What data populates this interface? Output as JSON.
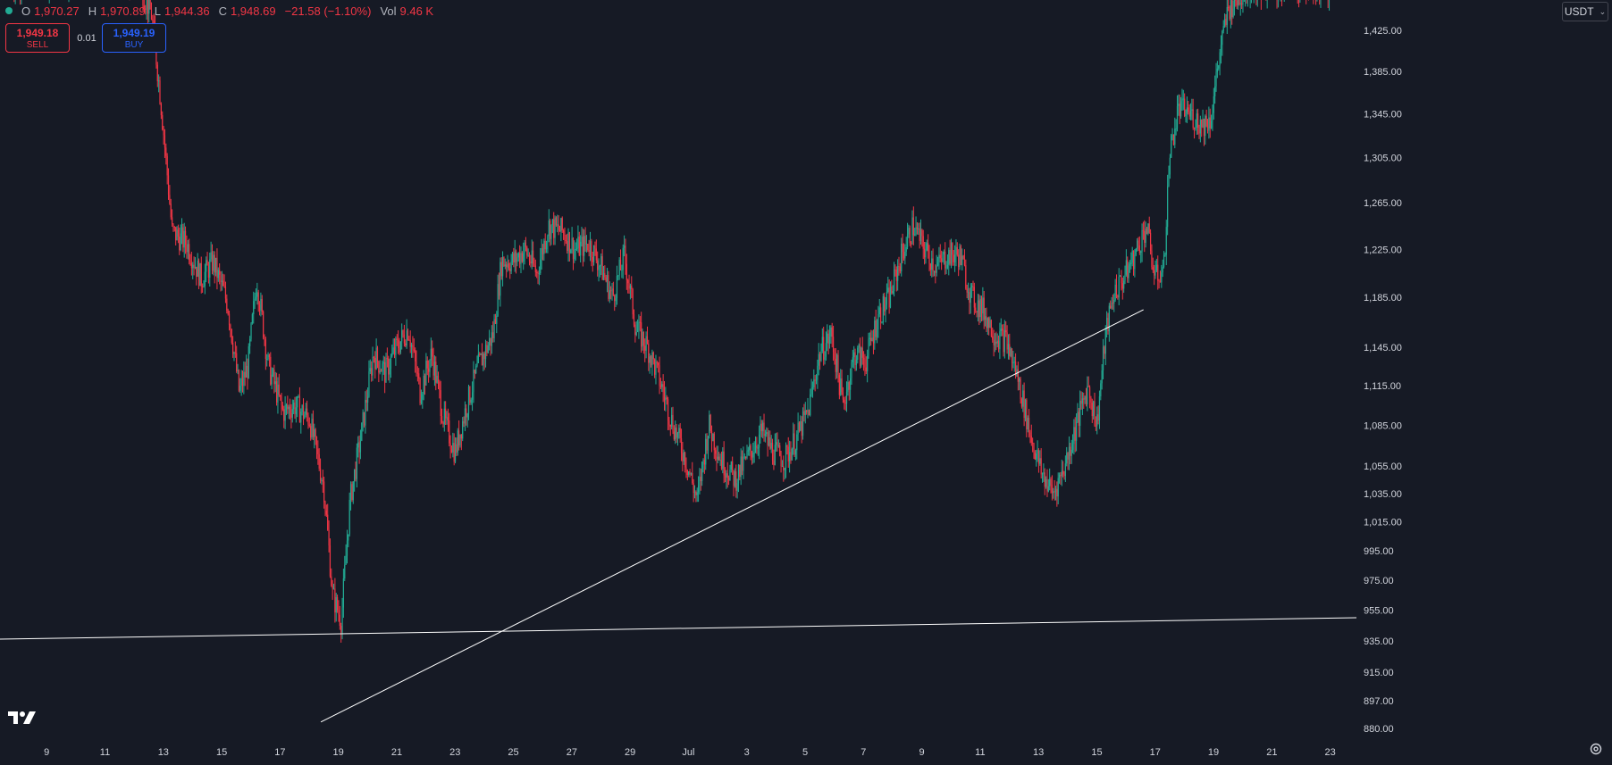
{
  "header": {
    "o_label": "O",
    "o_value": "1,970.27",
    "h_label": "H",
    "h_value": "1,970.89",
    "l_label": "L",
    "l_value": "1,944.36",
    "c_label": "C",
    "c_value": "1,948.69",
    "change": "−21.58 (−1.10%)",
    "vol_label": "Vol",
    "vol_value": "9.46 K"
  },
  "trade": {
    "sell_price": "1,949.18",
    "sell_label": "SELL",
    "spread": "0.01",
    "buy_price": "1,949.19",
    "buy_label": "BUY"
  },
  "currency": {
    "label": "USDT",
    "icon": "chevron-down-icon"
  },
  "icons": {
    "logo": "tradingview-logo",
    "settings": "settings-icon"
  },
  "colors": {
    "background": "#161a25",
    "up": "#22ab94",
    "down": "#f23645",
    "axis_text": "#d1d4dc",
    "trendline": "#ffffff"
  },
  "chart_data": {
    "type": "candlestick",
    "title": "",
    "xlabel": "",
    "ylabel": "",
    "ylim": [
      872,
      1455
    ],
    "y_scale": "log",
    "grid": false,
    "y_ticks": [
      "1,425.00",
      "1,385.00",
      "1,345.00",
      "1,305.00",
      "1,265.00",
      "1,225.00",
      "1,185.00",
      "1,145.00",
      "1,115.00",
      "1,085.00",
      "1,055.00",
      "1,035.00",
      "1,015.00",
      "995.00",
      "975.00",
      "955.00",
      "935.00",
      "915.00",
      "897.00",
      "880.00"
    ],
    "x_tick_labels": [
      "9",
      "11",
      "13",
      "15",
      "17",
      "19",
      "21",
      "23",
      "25",
      "27",
      "29",
      "Jul",
      "3",
      "5",
      "7",
      "9",
      "11",
      "13",
      "15",
      "17",
      "19",
      "21",
      "23"
    ],
    "x_tick_days": [
      9,
      11,
      13,
      15,
      17,
      19,
      21,
      23,
      25,
      27,
      29,
      31,
      33,
      35,
      37,
      39,
      41,
      43,
      45,
      47,
      49,
      51,
      53
    ],
    "x_range_days": [
      7.4,
      53.9
    ],
    "x_day_origin": "June 1",
    "candles_per_day": 24,
    "price_path": [
      [
        7.8,
        1470
      ],
      [
        8.6,
        1480
      ],
      [
        9.2,
        1475
      ],
      [
        10.0,
        1478
      ],
      [
        10.8,
        1482
      ],
      [
        11.5,
        1480
      ],
      [
        12.2,
        1470
      ],
      [
        12.6,
        1440
      ],
      [
        12.9,
        1360
      ],
      [
        13.3,
        1240
      ],
      [
        13.8,
        1230
      ],
      [
        14.3,
        1200
      ],
      [
        14.7,
        1215
      ],
      [
        15.2,
        1180
      ],
      [
        15.6,
        1110
      ],
      [
        15.9,
        1130
      ],
      [
        16.2,
        1200
      ],
      [
        16.6,
        1130
      ],
      [
        17.1,
        1095
      ],
      [
        17.5,
        1100
      ],
      [
        18.0,
        1090
      ],
      [
        18.5,
        1040
      ],
      [
        18.8,
        965
      ],
      [
        19.1,
        948
      ],
      [
        19.4,
        1030
      ],
      [
        19.8,
        1080
      ],
      [
        20.2,
        1140
      ],
      [
        20.6,
        1125
      ],
      [
        21.0,
        1145
      ],
      [
        21.4,
        1160
      ],
      [
        21.8,
        1110
      ],
      [
        22.2,
        1140
      ],
      [
        22.6,
        1090
      ],
      [
        23.0,
        1065
      ],
      [
        23.4,
        1100
      ],
      [
        23.8,
        1130
      ],
      [
        24.3,
        1155
      ],
      [
        24.6,
        1215
      ],
      [
        25.0,
        1215
      ],
      [
        25.4,
        1225
      ],
      [
        25.8,
        1205
      ],
      [
        26.2,
        1245
      ],
      [
        26.7,
        1240
      ],
      [
        27.1,
        1225
      ],
      [
        27.6,
        1230
      ],
      [
        28.0,
        1210
      ],
      [
        28.4,
        1185
      ],
      [
        28.8,
        1220
      ],
      [
        29.2,
        1160
      ],
      [
        29.6,
        1145
      ],
      [
        30.0,
        1120
      ],
      [
        30.4,
        1090
      ],
      [
        30.9,
        1060
      ],
      [
        31.3,
        1030
      ],
      [
        31.7,
        1085
      ],
      [
        32.1,
        1060
      ],
      [
        32.6,
        1045
      ],
      [
        33.0,
        1060
      ],
      [
        33.5,
        1080
      ],
      [
        33.9,
        1065
      ],
      [
        34.3,
        1060
      ],
      [
        34.7,
        1075
      ],
      [
        35.1,
        1095
      ],
      [
        35.5,
        1140
      ],
      [
        35.9,
        1155
      ],
      [
        36.3,
        1100
      ],
      [
        36.7,
        1140
      ],
      [
        37.1,
        1135
      ],
      [
        37.5,
        1170
      ],
      [
        37.9,
        1185
      ],
      [
        38.3,
        1220
      ],
      [
        38.7,
        1245
      ],
      [
        39.1,
        1225
      ],
      [
        39.5,
        1210
      ],
      [
        39.9,
        1220
      ],
      [
        40.3,
        1220
      ],
      [
        40.7,
        1185
      ],
      [
        41.1,
        1175
      ],
      [
        41.5,
        1155
      ],
      [
        41.9,
        1150
      ],
      [
        42.3,
        1120
      ],
      [
        42.7,
        1080
      ],
      [
        43.1,
        1050
      ],
      [
        43.5,
        1035
      ],
      [
        43.9,
        1055
      ],
      [
        44.3,
        1085
      ],
      [
        44.7,
        1115
      ],
      [
        45.0,
        1085
      ],
      [
        45.3,
        1155
      ],
      [
        45.6,
        1190
      ],
      [
        45.9,
        1200
      ],
      [
        46.3,
        1220
      ],
      [
        46.7,
        1245
      ],
      [
        47.0,
        1200
      ],
      [
        47.3,
        1210
      ],
      [
        47.5,
        1310
      ],
      [
        47.8,
        1350
      ],
      [
        48.2,
        1345
      ],
      [
        48.6,
        1335
      ],
      [
        48.9,
        1340
      ],
      [
        49.2,
        1400
      ],
      [
        49.5,
        1445
      ],
      [
        49.9,
        1460
      ],
      [
        50.4,
        1470
      ],
      [
        51.2,
        1465
      ],
      [
        52.2,
        1470
      ],
      [
        53.0,
        1468
      ]
    ],
    "trendlines": [
      {
        "x1": 18.4,
        "y1": 884,
        "x2": 46.6,
        "y2": 1175
      },
      {
        "x1": 7.4,
        "y1": 936,
        "x2": 53.9,
        "y2": 950
      }
    ]
  }
}
